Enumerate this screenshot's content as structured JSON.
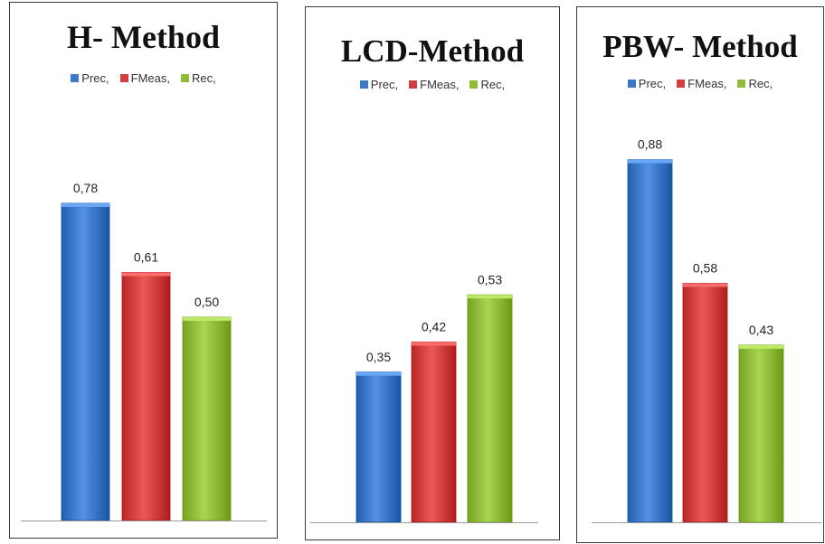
{
  "chart_data": [
    {
      "type": "bar",
      "title": "H- Method",
      "categories": [
        "Prec,",
        "FMeas,",
        "Rec,"
      ],
      "values": [
        0.78,
        0.61,
        0.5
      ],
      "value_labels": [
        "0,78",
        "0,61",
        "0,50"
      ],
      "legend": [
        "Prec,",
        "FMeas,",
        "Rec,"
      ],
      "legend_position": "top-center",
      "grid": false,
      "ylim": [
        0,
        1
      ]
    },
    {
      "type": "bar",
      "title": "LCD-Method",
      "categories": [
        "Prec,",
        "FMeas,",
        "Rec,"
      ],
      "values": [
        0.35,
        0.42,
        0.53
      ],
      "value_labels": [
        "0,35",
        "0,42",
        "0,53"
      ],
      "legend": [
        "Prec,",
        "FMeas,",
        "Rec,"
      ],
      "legend_position": "top-center",
      "grid": false,
      "ylim": [
        0,
        1
      ]
    },
    {
      "type": "bar",
      "title": "PBW- Method",
      "categories": [
        "Prec,",
        "FMeas,",
        "Rec,"
      ],
      "values": [
        0.88,
        0.58,
        0.43
      ],
      "value_labels": [
        "0,88",
        "0,58",
        "0,43"
      ],
      "legend": [
        "Prec,",
        "FMeas,",
        "Rec,"
      ],
      "legend_position": "top-center",
      "grid": false,
      "ylim": [
        0,
        1
      ]
    }
  ],
  "colors": {
    "prec": "#3b78c9",
    "fmeas": "#d23f3f",
    "rec": "#8fbd3a"
  }
}
